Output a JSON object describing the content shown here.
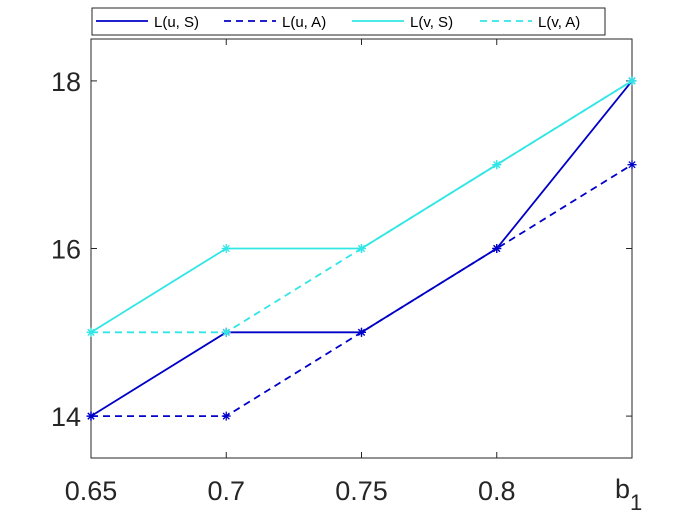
{
  "chart_data": {
    "type": "line",
    "x": [
      0.65,
      0.7,
      0.75,
      0.8,
      0.85
    ],
    "x_tick_labels": [
      "0.65",
      "0.7",
      "0.75",
      "0.8",
      ""
    ],
    "xlabel_base": "b",
    "xlabel_sub": "1",
    "xlim": [
      0.65,
      0.85
    ],
    "ylim": [
      13.5,
      18.5
    ],
    "y_ticks": [
      14,
      16,
      18
    ],
    "y_tick_labels": [
      "14",
      "16",
      "18"
    ],
    "grid": false,
    "legend_position": "top",
    "marker": "*",
    "series": [
      {
        "name": "L(u, S)",
        "values": [
          14,
          15,
          15,
          16,
          18
        ],
        "color": "#0000c8",
        "dash": "solid"
      },
      {
        "name": "L(u, A)",
        "values": [
          14,
          14,
          15,
          16,
          17
        ],
        "color": "#0000c8",
        "dash": "dashed"
      },
      {
        "name": "L(v, S)",
        "values": [
          15,
          16,
          16,
          17,
          18
        ],
        "color": "#32e6e6",
        "dash": "solid"
      },
      {
        "name": "L(v, A)",
        "values": [
          15,
          15,
          16,
          17,
          18
        ],
        "color": "#32e6e6",
        "dash": "dashed"
      }
    ]
  }
}
